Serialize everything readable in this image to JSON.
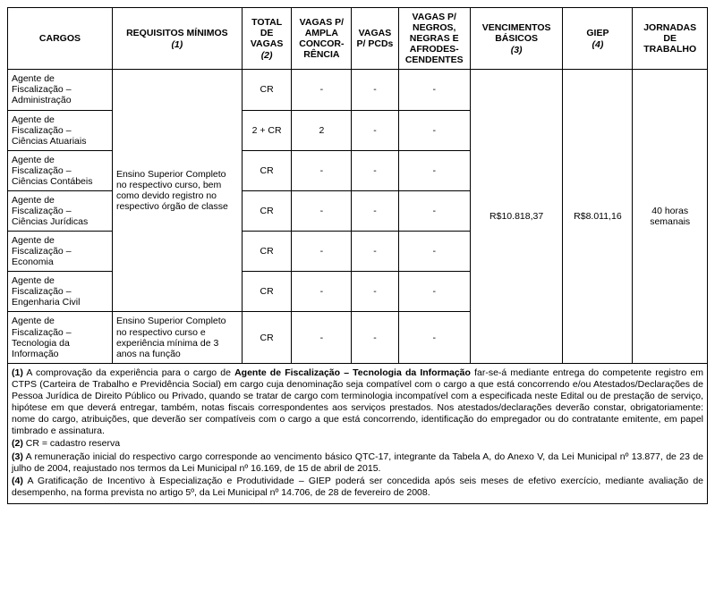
{
  "headers": {
    "cargos": "CARGOS",
    "requisitos": "REQUISITOS MÍNIMOS",
    "requisitos_note": "(1)",
    "total": "TOTAL DE VAGAS",
    "total_note": "(2)",
    "ampla": "VAGAS P/ AMPLA CONCOR-RÊNCIA",
    "pcd": "VAGAS P/ PCDs",
    "negros": "VAGAS P/ NEGROS, NEGRAS E AFRODES-CENDENTES",
    "venc": "VENCIMENTOS BÁSICOS",
    "venc_note": "(3)",
    "giep": "GIEP",
    "giep_note": "(4)",
    "jornada": "JORNADAS DE TRABALHO"
  },
  "requisito_a": "Ensino Superior Completo no respectivo  curso, bem como devido registro no respectivo órgão de classe",
  "requisito_b": "Ensino Superior Completo no respectivo curso e experiência mínima de 3 anos na função",
  "vencimento": "R$10.818,37",
  "giep_val": "R$8.011,16",
  "jornada_val": "40 horas semanais",
  "rows": {
    "r1": {
      "cargo": "Agente de Fiscalização – Administração",
      "total": "CR",
      "ampla": "-",
      "pcd": "-",
      "neg": "-"
    },
    "r2": {
      "cargo": "Agente de Fiscalização – Ciências Atuariais",
      "total": "2 + CR",
      "ampla": "2",
      "pcd": "-",
      "neg": "-"
    },
    "r3": {
      "cargo": "Agente de Fiscalização – Ciências Contábeis",
      "total": "CR",
      "ampla": "-",
      "pcd": "-",
      "neg": "-"
    },
    "r4": {
      "cargo": "Agente de Fiscalização – Ciências Jurídicas",
      "total": "CR",
      "ampla": "-",
      "pcd": "-",
      "neg": "-"
    },
    "r5": {
      "cargo": "Agente de Fiscalização – Economia",
      "total": "CR",
      "ampla": "-",
      "pcd": "-",
      "neg": "-"
    },
    "r6": {
      "cargo": "Agente de Fiscalização – Engenharia Civil",
      "total": "CR",
      "ampla": "-",
      "pcd": "-",
      "neg": "-"
    },
    "r7": {
      "cargo": "Agente de Fiscalização – Tecnologia da Informação",
      "total": "CR",
      "ampla": "-",
      "pcd": "-",
      "neg": "-"
    }
  },
  "notes": {
    "n1a": "A comprovação da experiência para o cargo de ",
    "n1b": "Agente de Fiscalização – Tecnologia da Informação",
    "n1c": " far-se-á mediante entrega do competente registro em CTPS (Carteira de Trabalho e Previdência Social) em cargo cuja denominação seja compatível com o cargo a que está concorrendo e/ou Atestados/Declarações de Pessoa Jurídica de Direito Público ou Privado, quando se tratar de cargo com terminologia incompatível com a especificada neste Edital ou de prestação de serviço, hipótese em que deverá entregar, também, notas fiscais correspondentes aos serviços prestados. Nos atestados/declarações deverão constar, obrigatoriamente: nome do cargo, atribuições, que deverão ser compatíveis com o cargo a que está concorrendo, identificação do empregador ou do contratante emitente, em papel timbrado e assinatura.",
    "n2": "CR = cadastro reserva",
    "n3": "A remuneração inicial do respectivo cargo corresponde ao vencimento básico QTC-17, integrante da Tabela A, do Anexo V, da Lei Municipal nº 13.877, de 23 de julho de 2004, reajustado nos termos da Lei Municipal nº 16.169, de 15 de abril de 2015.",
    "n4": "A Gratificação de Incentivo à Especialização e Produtividade – GIEP poderá ser concedida após seis meses de efetivo exercício, mediante avaliação de desempenho, na forma prevista no artigo 5º, da Lei Municipal nº 14.706, de 28 de fevereiro de 2008.",
    "num1": "(1)",
    "num2": "(2)",
    "num3": "(3)",
    "num4": "(4)"
  }
}
